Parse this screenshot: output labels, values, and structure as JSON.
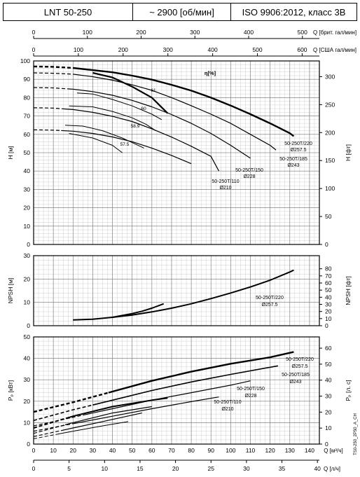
{
  "header": {
    "model": "LNT 50-250",
    "speed": "~ 2900 [об/мин]",
    "standard": "ISO 9906:2012, класс 3B"
  },
  "doc_code": "TS0-250_2P50_A_CH",
  "chart_data": [
    {
      "id": "top_axes",
      "type": "line",
      "axes": [
        {
          "label": "Q [брит. гал/мин]",
          "ticks": [
            0,
            100,
            200,
            300,
            400,
            500
          ]
        },
        {
          "label": "Q [США гал/мин]",
          "ticks": [
            0,
            100,
            200,
            300,
            400,
            500,
            600
          ]
        }
      ]
    },
    {
      "id": "head",
      "type": "line",
      "ylabel": "H [м]",
      "ylabel_right": "H [фт]",
      "ylim": [
        0,
        100
      ],
      "yticks": [
        0,
        10,
        20,
        30,
        40,
        50,
        60,
        70,
        80,
        90,
        100
      ],
      "yticks_right": [
        0,
        50,
        100,
        150,
        200,
        250,
        300
      ],
      "grid": true,
      "series": [
        {
          "name": "50-250T/220 Ø257.5",
          "dash_until": 20,
          "x": [
            0,
            10,
            20,
            30,
            40,
            50,
            60,
            70,
            80,
            90,
            100,
            110,
            120,
            130,
            132
          ],
          "y": [
            97,
            96.8,
            96.2,
            95,
            93.8,
            92,
            89.8,
            87,
            83.8,
            80,
            75.7,
            71,
            66,
            60.6,
            59
          ]
        },
        {
          "name": "50-250T/185 Ø243",
          "dash_until": 20,
          "x": [
            0,
            10,
            20,
            30,
            40,
            50,
            60,
            70,
            80,
            90,
            100,
            110,
            120,
            123
          ],
          "y": [
            93.5,
            93.3,
            92.8,
            91.4,
            89.5,
            87,
            84,
            80,
            75.6,
            71,
            66,
            60,
            54,
            51.5
          ]
        },
        {
          "name": "50-250T/150 Ø228",
          "dash_until": 18,
          "x": [
            0,
            10,
            20,
            30,
            40,
            50,
            60,
            70,
            80,
            90,
            100,
            110
          ],
          "y": [
            85.5,
            85.3,
            84.6,
            83.3,
            81.3,
            78.5,
            75,
            70.8,
            66,
            60.5,
            54,
            47
          ]
        },
        {
          "name": "50-250T/110 Ø210",
          "dash_until": 16,
          "x": [
            0,
            10,
            20,
            30,
            40,
            50,
            60,
            70,
            80,
            90,
            94
          ],
          "y": [
            74.5,
            74.3,
            73.5,
            72,
            69.8,
            67,
            63,
            58.5,
            53.5,
            48,
            40
          ]
        },
        {
          "name": "",
          "dash_until": 14,
          "x": [
            0,
            10,
            20,
            30,
            40,
            50,
            60,
            70,
            80
          ],
          "y": [
            62.5,
            62.3,
            61.7,
            60.5,
            58.6,
            56,
            52.5,
            48.5,
            44
          ]
        }
      ],
      "efficiency_label": "η[%]",
      "efficiency_curves": [
        {
          "label": "61",
          "x": [
            30,
            40,
            50,
            60,
            68
          ],
          "y": [
            93.5,
            91,
            86,
            80,
            71.5
          ]
        },
        {
          "label": "60",
          "x": [
            22,
            30,
            40,
            50,
            60,
            65
          ],
          "y": [
            82.5,
            82,
            79,
            75.5,
            71,
            68
          ]
        },
        {
          "label": "58.9",
          "x": [
            18,
            30,
            40,
            50,
            57,
            62
          ],
          "y": [
            75.5,
            75,
            72.5,
            69,
            65.5,
            62
          ]
        },
        {
          "label": "57.5",
          "x": [
            16,
            25,
            35,
            45,
            50,
            56
          ],
          "y": [
            65,
            64.5,
            62,
            58,
            55.5,
            52.5
          ]
        },
        {
          "label": "",
          "x": [
            18,
            30,
            40,
            45
          ],
          "y": [
            60.5,
            58,
            54,
            50
          ]
        }
      ]
    },
    {
      "id": "npsh",
      "type": "line",
      "ylabel": "NPSH [м]",
      "ylabel_right": "NPSH [фт]",
      "ylim": [
        0,
        30
      ],
      "yticks": [
        0,
        10,
        20,
        30
      ],
      "yticks_right": [
        0,
        10,
        20,
        30,
        40,
        50,
        60,
        70,
        80
      ],
      "grid": true,
      "series": [
        {
          "name": "50-250T/220 Ø257.5",
          "x": [
            20,
            30,
            40,
            50,
            60,
            70,
            80,
            90,
            100,
            110,
            120,
            130,
            132
          ],
          "y": [
            2.5,
            2.8,
            3.6,
            4.6,
            5.9,
            7.5,
            9.4,
            11.6,
            14,
            16.6,
            19.5,
            23,
            23.8
          ]
        },
        {
          "name": "",
          "x": [
            40,
            50,
            55,
            60,
            66
          ],
          "y": [
            3.6,
            5.2,
            6.2,
            7.5,
            9.4
          ]
        }
      ]
    },
    {
      "id": "power",
      "type": "line",
      "ylabel": "Pₚ [кВт]",
      "ylabel_right": "Pₚ [л. с]",
      "ylim": [
        0,
        50
      ],
      "yticks": [
        0,
        10,
        20,
        30,
        40,
        50
      ],
      "yticks_right": [
        0,
        10,
        20,
        30,
        40,
        50,
        60
      ],
      "xlabel": "Q [м³/ч]",
      "xticks": [
        0,
        10,
        20,
        30,
        40,
        50,
        60,
        70,
        80,
        90,
        100,
        110,
        120,
        130,
        140
      ],
      "xlabel2": "Q [л/ч]",
      "xticks2": [
        0,
        5,
        10,
        15,
        20,
        25,
        30,
        35,
        40
      ],
      "grid": true,
      "series": [
        {
          "name": "50-250T/220 Ø257.5",
          "dash_until": 38,
          "x": [
            0,
            20,
            40,
            60,
            80,
            100,
            120,
            132
          ],
          "y": [
            15,
            19.5,
            24.5,
            29.5,
            33.8,
            37.5,
            40.5,
            43
          ]
        },
        {
          "name": "50-250T/185 Ø243",
          "dash_until": 30,
          "x": [
            0,
            20,
            40,
            60,
            80,
            100,
            124
          ],
          "y": [
            11,
            16,
            20.5,
            25,
            29,
            32.5,
            36.5
          ]
        },
        {
          "name": "50-250T/150 Ø228",
          "dash_until": 25,
          "x": [
            0,
            20,
            40,
            60,
            80,
            100,
            110
          ],
          "y": [
            8.5,
            12.5,
            16.5,
            20.5,
            24,
            27.5,
            29.5
          ]
        },
        {
          "name": "50-250T/110 Ø210",
          "dash_until": 20,
          "x": [
            0,
            20,
            40,
            60,
            80,
            94
          ],
          "y": [
            6,
            9.5,
            13,
            16.5,
            19.8,
            22
          ]
        },
        {
          "name": "",
          "dash_until": 18,
          "x": [
            0,
            20,
            40,
            60,
            68
          ],
          "y": [
            7.5,
            13,
            17.5,
            20.5,
            21.5
          ]
        },
        {
          "name": "",
          "dash_until": 16,
          "x": [
            0,
            20,
            40,
            60
          ],
          "y": [
            5,
            10,
            14.5,
            17.5
          ]
        },
        {
          "name": "",
          "dash_until": 14,
          "x": [
            0,
            20,
            40,
            55
          ],
          "y": [
            3.5,
            7.5,
            11.5,
            14.5
          ]
        },
        {
          "name": "",
          "dash_until": 12,
          "x": [
            0,
            20,
            35,
            48
          ],
          "y": [
            2.5,
            6,
            8.5,
            10.5
          ]
        }
      ]
    }
  ]
}
